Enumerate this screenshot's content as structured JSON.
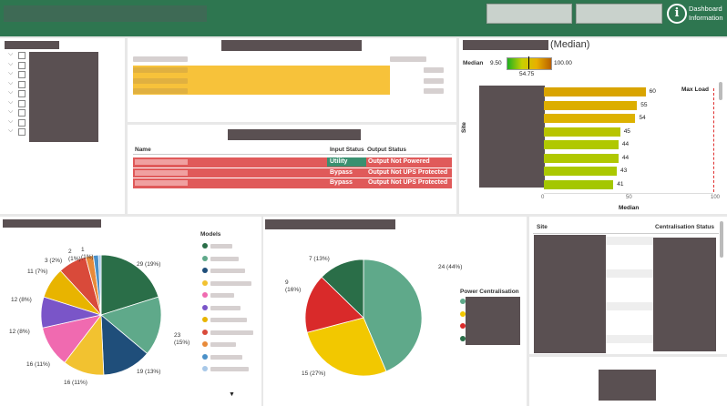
{
  "header": {
    "info_icon": "info-icon",
    "info_label_line1": "Dashboard",
    "info_label_line2": "Information",
    "bg_color": "#2e7650"
  },
  "status_table": {
    "columns": [
      "Name",
      "Input Status",
      "Output Status"
    ],
    "rows": [
      {
        "input": "Utility",
        "output": "Output Not Powered",
        "input_color": "#3a9070"
      },
      {
        "input": "Bypass",
        "output": "Output Not UPS Protected",
        "input_color": "#e05a5a"
      },
      {
        "input": "Bypass",
        "output": "Output Not UPS Protected",
        "input_color": "#e05a5a"
      }
    ]
  },
  "median_panel": {
    "title_suffix": "(Median)",
    "legend_label": "Median",
    "legend_min": "9.50",
    "legend_max": "100.00",
    "legend_marker": "54.75",
    "y_axis_label": "Site",
    "x_axis_label": "Median",
    "max_load_label": "Max Load"
  },
  "models_legend_title": "Models",
  "power_legend_title": "Power Centralisation",
  "centralisation_table": {
    "col_site": "Site",
    "col_status": "Centralisation Status"
  },
  "chart_data": [
    {
      "type": "bar",
      "orientation": "horizontal",
      "xlabel": "Median",
      "ylabel": "Site",
      "xlim": [
        0,
        100
      ],
      "x_ticks": [
        "0",
        "50",
        "100"
      ],
      "values": [
        60,
        55,
        54,
        45,
        44,
        44,
        43,
        41
      ],
      "colors": [
        "#d9a400",
        "#dcae00",
        "#ddb200",
        "#b8c400",
        "#b0c800",
        "#b0c800",
        "#abc800",
        "#a4c700"
      ],
      "reference_line": {
        "label": "Max Load",
        "value": 100,
        "color": "#e03030"
      }
    },
    {
      "type": "pie",
      "legend_title": "Models",
      "values": [
        29,
        23,
        19,
        16,
        16,
        12,
        12,
        11,
        3,
        2,
        1
      ],
      "labels": [
        "29 (19%)",
        "23\n(15%)",
        "19 (13%)",
        "16 (11%)",
        "16 (11%)",
        "12 (8%)",
        "12 (8%)",
        "11 (7%)",
        "3 (2%)",
        "2\n(1%)",
        "1\n(1%)"
      ],
      "colors": [
        "#2a6e48",
        "#5fa98a",
        "#1f4e7a",
        "#f2c230",
        "#f06ab0",
        "#7a55c8",
        "#e8b400",
        "#d94a3a",
        "#e88a3a",
        "#4a90c8",
        "#a8c8e8"
      ]
    },
    {
      "type": "pie",
      "legend_title": "Power Centralisation",
      "values": [
        24,
        15,
        9,
        7
      ],
      "labels": [
        "24 (44%)",
        "15 (27%)",
        "9\n(16%)",
        "7 (13%)"
      ],
      "colors": [
        "#5fa98a",
        "#f2c800",
        "#d92a2a",
        "#2a6e48"
      ]
    }
  ]
}
